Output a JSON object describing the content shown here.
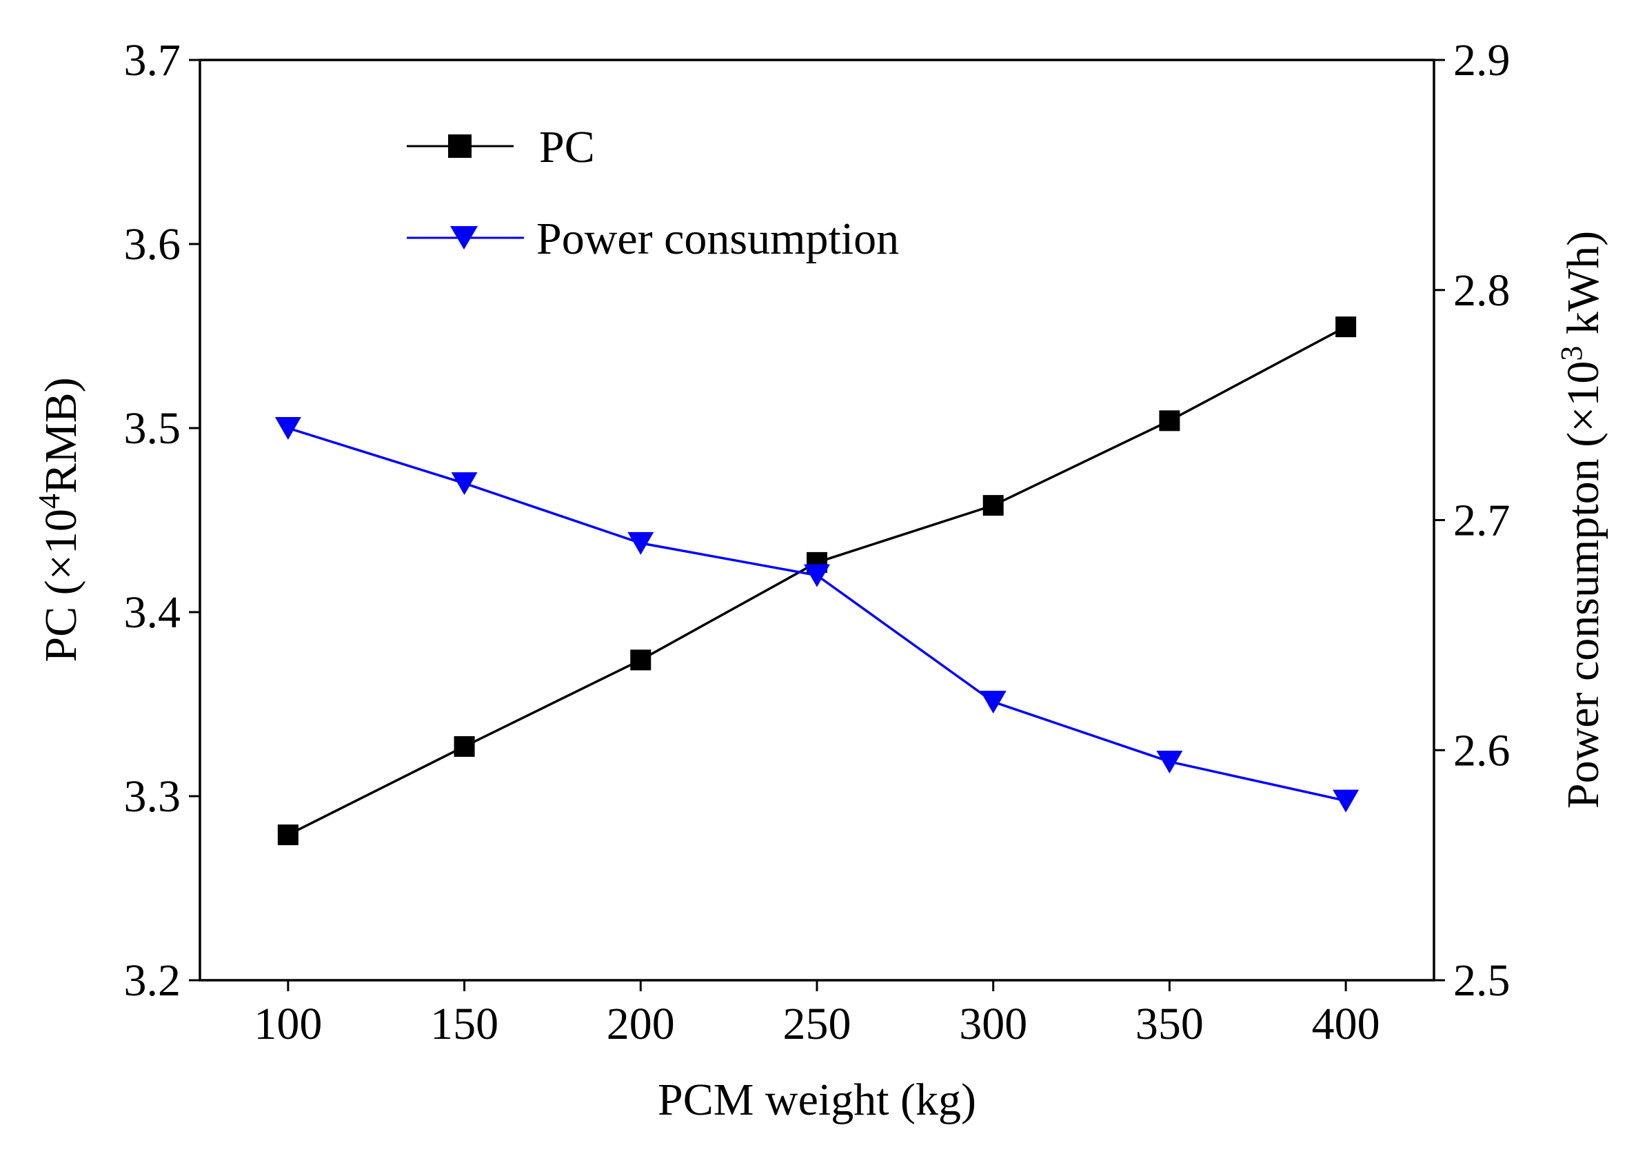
{
  "chart_data": {
    "type": "line",
    "x": [
      100,
      150,
      200,
      250,
      300,
      350,
      400
    ],
    "xlim": [
      75,
      425
    ],
    "xticks": [
      "100",
      "150",
      "200",
      "250",
      "300",
      "350",
      "400"
    ],
    "xlabel": "PCM weight (kg)",
    "y_left": {
      "label_prefix": "PC (×10",
      "label_sup": "4",
      "label_suffix": "RMB)",
      "ylim": [
        3.2,
        3.7
      ],
      "ticks": [
        "3.2",
        "3.3",
        "3.4",
        "3.5",
        "3.6",
        "3.7"
      ]
    },
    "y_right": {
      "label_prefix": "Power consumpton (×10",
      "label_sup": "3",
      "label_suffix": " kWh)",
      "ylim": [
        2.5,
        2.9
      ],
      "ticks": [
        "2.5",
        "2.6",
        "2.7",
        "2.8",
        "2.9"
      ]
    },
    "series": [
      {
        "name": "PC",
        "axis": "left",
        "marker": "square",
        "color": "#000000",
        "values": [
          3.279,
          3.327,
          3.374,
          3.427,
          3.458,
          3.504,
          3.555
        ]
      },
      {
        "name": "Power consumption",
        "axis": "right",
        "marker": "triangle-down",
        "color": "#0000ff",
        "values": [
          2.74,
          2.716,
          2.69,
          2.676,
          2.621,
          2.595,
          2.578
        ]
      }
    ],
    "legend": {
      "position": "top-left"
    },
    "grid": false
  }
}
